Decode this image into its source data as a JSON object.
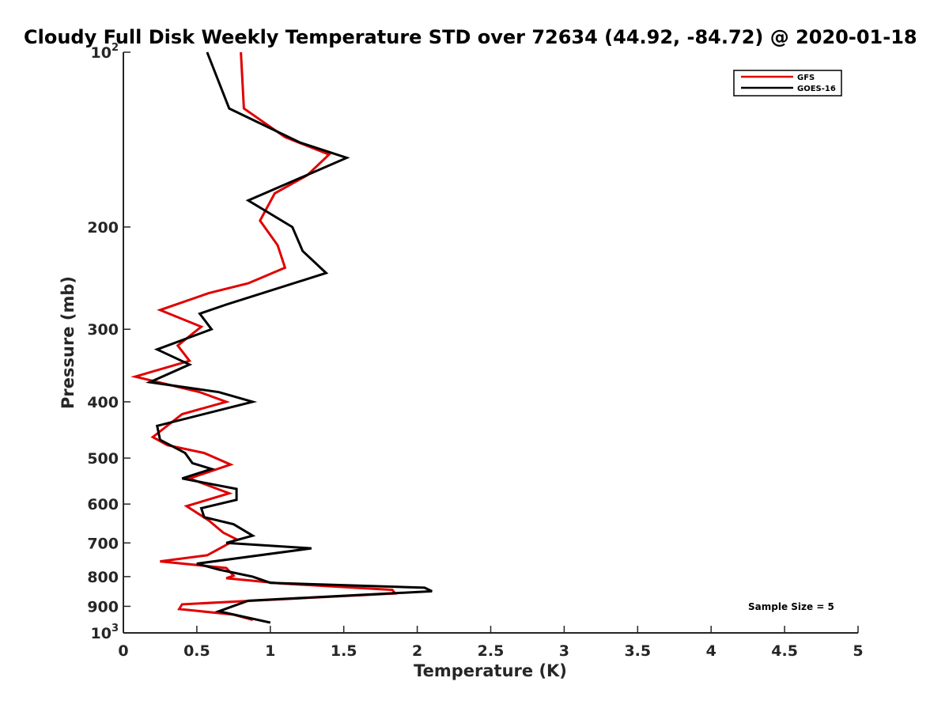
{
  "chart_data": {
    "type": "line",
    "title": "Cloudy Full Disk Weekly Temperature STD over 72634 (44.92, -84.72) @ 2020-01-18",
    "xlabel": "Temperature (K)",
    "ylabel": "Pressure (mb)",
    "xlim": [
      0,
      5
    ],
    "ylim": [
      100,
      1000
    ],
    "y_scale": "log",
    "y_reversed": true,
    "grid": false,
    "legend_position": "top-right",
    "x_ticks": [
      "0",
      "0.5",
      "1",
      "1.5",
      "2",
      "2.5",
      "3",
      "3.5",
      "4",
      "4.5",
      "5"
    ],
    "y_ticks": [
      {
        "value": 100,
        "base": "10",
        "exp": "2"
      },
      {
        "value": 200,
        "label": "200"
      },
      {
        "value": 300,
        "label": "300"
      },
      {
        "value": 400,
        "label": "400"
      },
      {
        "value": 500,
        "label": "500"
      },
      {
        "value": 600,
        "label": "600"
      },
      {
        "value": 700,
        "label": "700"
      },
      {
        "value": 800,
        "label": "800"
      },
      {
        "value": 900,
        "label": "900"
      },
      {
        "value": 1000,
        "base": "10",
        "exp": "3"
      }
    ],
    "annotation": "Sample Size = 5",
    "series": [
      {
        "name": "GFS",
        "color": "#e00000",
        "points": [
          [
            0.8,
            100
          ],
          [
            0.82,
            125
          ],
          [
            1.1,
            140
          ],
          [
            1.4,
            150
          ],
          [
            1.25,
            163
          ],
          [
            1.03,
            175
          ],
          [
            0.93,
            195
          ],
          [
            1.05,
            215
          ],
          [
            1.1,
            235
          ],
          [
            0.85,
            250
          ],
          [
            0.58,
            260
          ],
          [
            0.25,
            278
          ],
          [
            0.53,
            297
          ],
          [
            0.37,
            320
          ],
          [
            0.45,
            340
          ],
          [
            0.08,
            362
          ],
          [
            0.52,
            385
          ],
          [
            0.7,
            400
          ],
          [
            0.4,
            420
          ],
          [
            0.2,
            460
          ],
          [
            0.3,
            475
          ],
          [
            0.55,
            490
          ],
          [
            0.73,
            513
          ],
          [
            0.45,
            542
          ],
          [
            0.72,
            575
          ],
          [
            0.43,
            605
          ],
          [
            0.58,
            640
          ],
          [
            0.68,
            672
          ],
          [
            0.77,
            690
          ],
          [
            0.57,
            735
          ],
          [
            0.25,
            753
          ],
          [
            0.7,
            773
          ],
          [
            0.75,
            797
          ],
          [
            0.7,
            805
          ],
          [
            1.07,
            822
          ],
          [
            1.83,
            843
          ],
          [
            1.85,
            855
          ],
          [
            0.4,
            893
          ],
          [
            0.38,
            910
          ],
          [
            0.75,
            930
          ],
          [
            0.88,
            950
          ]
        ]
      },
      {
        "name": "GOES-16",
        "color": "#000000",
        "points": [
          [
            0.57,
            100
          ],
          [
            0.72,
            125
          ],
          [
            1.2,
            143
          ],
          [
            1.52,
            152
          ],
          [
            0.85,
            180
          ],
          [
            1.15,
            200
          ],
          [
            1.22,
            220
          ],
          [
            1.38,
            240
          ],
          [
            0.7,
            272
          ],
          [
            0.52,
            282
          ],
          [
            0.6,
            300
          ],
          [
            0.23,
            325
          ],
          [
            0.45,
            345
          ],
          [
            0.18,
            370
          ],
          [
            0.65,
            385
          ],
          [
            0.88,
            400
          ],
          [
            0.23,
            440
          ],
          [
            0.25,
            465
          ],
          [
            0.42,
            490
          ],
          [
            0.47,
            510
          ],
          [
            0.6,
            522
          ],
          [
            0.4,
            542
          ],
          [
            0.77,
            565
          ],
          [
            0.77,
            590
          ],
          [
            0.53,
            610
          ],
          [
            0.55,
            632
          ],
          [
            0.75,
            650
          ],
          [
            0.88,
            680
          ],
          [
            0.7,
            700
          ],
          [
            1.28,
            715
          ],
          [
            0.5,
            760
          ],
          [
            0.65,
            778
          ],
          [
            0.88,
            800
          ],
          [
            1.0,
            820
          ],
          [
            2.05,
            836
          ],
          [
            2.1,
            848
          ],
          [
            0.85,
            880
          ],
          [
            0.65,
            918
          ],
          [
            1.0,
            960
          ]
        ]
      }
    ]
  }
}
